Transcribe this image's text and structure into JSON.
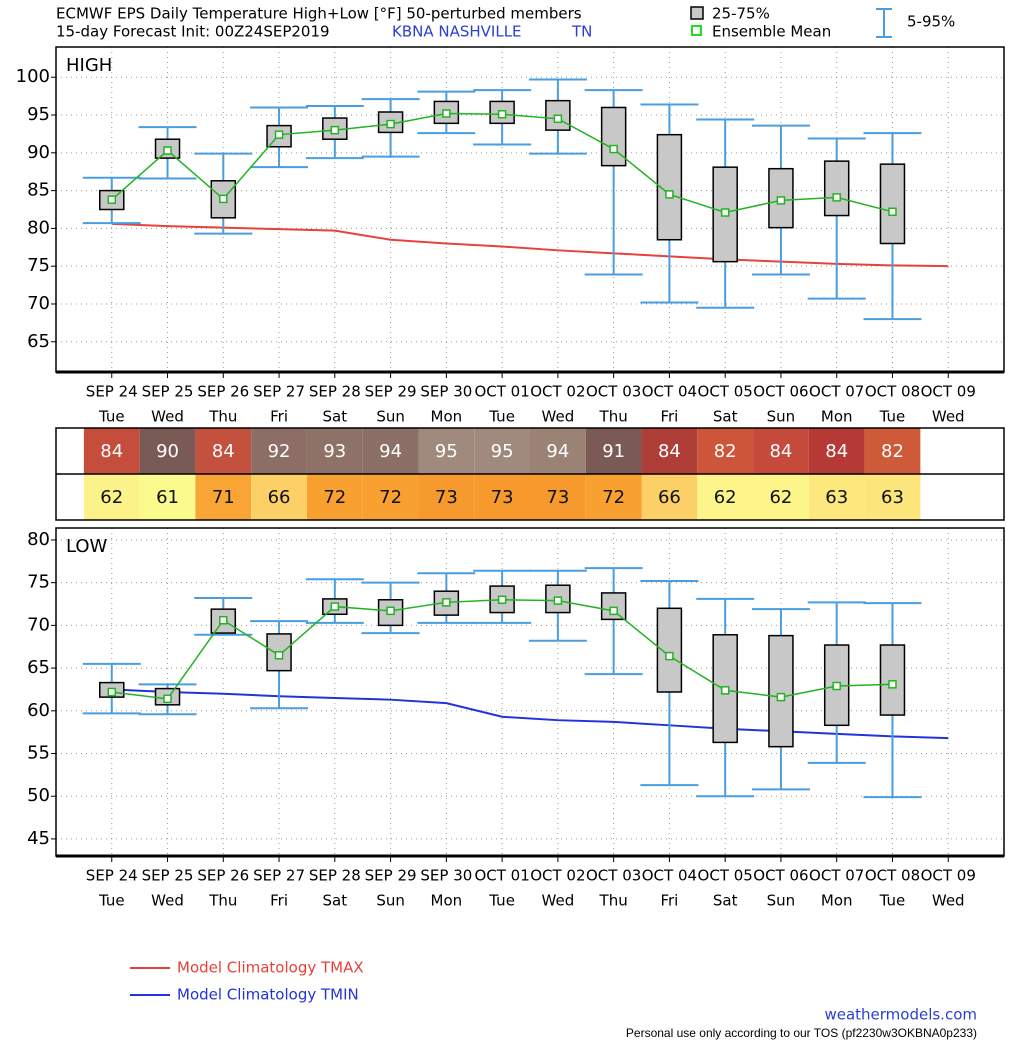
{
  "header": {
    "title": "ECMWF EPS Daily Temperature High+Low [°F]  50-perturbed members",
    "init": "15-day Forecast Init: 00Z24SEP2019",
    "station": "KBNA  NASHVILLE",
    "state": "TN"
  },
  "legend": {
    "box": "25-75%",
    "mean": "Ensemble Mean",
    "whisker": "5-95%"
  },
  "footer": {
    "site": "weathermodels.com",
    "tos": "Personal use only according to our TOS (pf2230w3OKBNA0p233)"
  },
  "chart_data": [
    {
      "type": "box",
      "title": "HIGH",
      "categories": [
        "SEP 24",
        "SEP 25",
        "SEP 26",
        "SEP 27",
        "SEP 28",
        "SEP 29",
        "SEP 30",
        "OCT 01",
        "OCT 02",
        "OCT 03",
        "OCT 04",
        "OCT 05",
        "OCT 06",
        "OCT 07",
        "OCT 08",
        "OCT 09"
      ],
      "weekdays": [
        "Tue",
        "Wed",
        "Thu",
        "Fri",
        "Sat",
        "Sun",
        "Mon",
        "Tue",
        "Wed",
        "Thu",
        "Fri",
        "Sat",
        "Sun",
        "Mon",
        "Tue",
        "Wed"
      ],
      "ylim": [
        61,
        104
      ],
      "yticks": [
        65,
        70,
        75,
        80,
        85,
        90,
        95,
        100
      ],
      "grid": true,
      "box_color": "#c8c8c8",
      "whisker_color": "#4a9ee0",
      "mean_color": "#22b322",
      "q1": [
        82.5,
        89.3,
        81.4,
        90.8,
        91.8,
        92.7,
        93.9,
        93.9,
        93.0,
        88.3,
        78.5,
        75.6,
        80.1,
        81.7,
        78.0,
        null
      ],
      "q3": [
        85.0,
        91.8,
        86.3,
        93.6,
        94.6,
        95.4,
        96.8,
        96.8,
        96.9,
        96.0,
        92.4,
        88.1,
        87.9,
        88.9,
        88.5,
        null
      ],
      "p5": [
        80.7,
        86.6,
        79.3,
        88.1,
        89.3,
        89.5,
        92.6,
        91.1,
        89.9,
        73.9,
        70.2,
        69.5,
        73.9,
        70.7,
        68.0,
        null
      ],
      "p95": [
        86.7,
        93.4,
        89.9,
        96.0,
        96.2,
        97.1,
        98.1,
        98.3,
        99.7,
        98.3,
        96.4,
        94.4,
        93.6,
        91.9,
        92.6,
        null
      ],
      "mean": [
        83.8,
        90.3,
        83.9,
        92.4,
        93.0,
        93.8,
        95.2,
        95.1,
        94.5,
        90.5,
        84.5,
        82.1,
        83.7,
        84.1,
        82.2,
        null
      ],
      "series": [
        {
          "name": "Model Climatology TMAX",
          "color": "#e8413c",
          "values": [
            80.6,
            80.3,
            80.1,
            79.9,
            79.7,
            78.5,
            78.0,
            77.6,
            77.1,
            76.7,
            76.3,
            75.9,
            75.6,
            75.3,
            75.1,
            75.0
          ]
        }
      ]
    },
    {
      "type": "box",
      "title": "LOW",
      "categories": [
        "SEP 24",
        "SEP 25",
        "SEP 26",
        "SEP 27",
        "SEP 28",
        "SEP 29",
        "SEP 30",
        "OCT 01",
        "OCT 02",
        "OCT 03",
        "OCT 04",
        "OCT 05",
        "OCT 06",
        "OCT 07",
        "OCT 08",
        "OCT 09"
      ],
      "weekdays": [
        "Tue",
        "Wed",
        "Thu",
        "Fri",
        "Sat",
        "Sun",
        "Mon",
        "Tue",
        "Wed",
        "Thu",
        "Fri",
        "Sat",
        "Sun",
        "Mon",
        "Tue",
        "Wed"
      ],
      "ylim": [
        43,
        81.4
      ],
      "yticks": [
        45,
        50,
        55,
        60,
        65,
        70,
        75,
        80
      ],
      "grid": true,
      "box_color": "#c8c8c8",
      "whisker_color": "#4a9ee0",
      "mean_color": "#22b322",
      "q1": [
        61.6,
        60.7,
        69.1,
        64.7,
        71.3,
        70.0,
        71.2,
        71.5,
        71.5,
        70.7,
        62.2,
        56.3,
        55.8,
        58.3,
        59.5,
        null
      ],
      "q3": [
        63.3,
        62.6,
        71.9,
        69.0,
        73.1,
        73.0,
        74.0,
        74.6,
        74.7,
        73.8,
        72.0,
        68.9,
        68.8,
        67.7,
        67.7,
        null
      ],
      "p5": [
        59.7,
        59.6,
        68.9,
        60.3,
        70.3,
        69.1,
        70.3,
        70.3,
        68.2,
        64.3,
        51.3,
        50.0,
        50.8,
        53.9,
        49.9,
        null
      ],
      "p95": [
        65.5,
        63.1,
        73.2,
        70.5,
        75.4,
        75.0,
        76.1,
        76.4,
        76.4,
        76.7,
        75.2,
        73.1,
        71.9,
        72.7,
        72.6,
        null
      ],
      "mean": [
        62.2,
        61.4,
        70.6,
        66.5,
        72.2,
        71.7,
        72.7,
        73.0,
        72.9,
        71.7,
        66.4,
        62.4,
        61.6,
        62.9,
        63.1,
        null
      ],
      "series": [
        {
          "name": "Model Climatology TMIN",
          "color": "#2233dd",
          "values": [
            62.5,
            62.2,
            62.0,
            61.7,
            61.5,
            61.3,
            60.9,
            59.3,
            58.9,
            58.7,
            58.3,
            57.9,
            57.6,
            57.3,
            57.0,
            56.8
          ]
        }
      ]
    }
  ],
  "table": {
    "rows": [
      {
        "values": [
          84,
          90,
          84,
          92,
          93,
          94,
          95,
          95,
          94,
          91,
          84,
          82,
          84,
          84,
          82
        ],
        "colors": [
          "#c44e3b",
          "#7a5a55",
          "#c4503e",
          "#8c6e67",
          "#8e7167",
          "#8c7068",
          "#a08a7e",
          "#a08a7e",
          "#9a8275",
          "#7b5a55",
          "#b03e38",
          "#cd5539",
          "#c54a3b",
          "#b53a36",
          "#cf5a3a"
        ],
        "text_color": "#ffffff"
      },
      {
        "values": [
          62,
          61,
          71,
          66,
          72,
          72,
          73,
          73,
          73,
          72,
          66,
          62,
          62,
          63,
          63
        ],
        "colors": [
          "#fbf38a",
          "#fbfa8c",
          "#f9a535",
          "#fcd067",
          "#f8a030",
          "#f8a030",
          "#f79a2d",
          "#f79a2d",
          "#f79a2d",
          "#f8a030",
          "#fcd067",
          "#fdf48a",
          "#fdf48a",
          "#fce87c",
          "#fce57a"
        ],
        "text_color": "#111111"
      }
    ]
  }
}
